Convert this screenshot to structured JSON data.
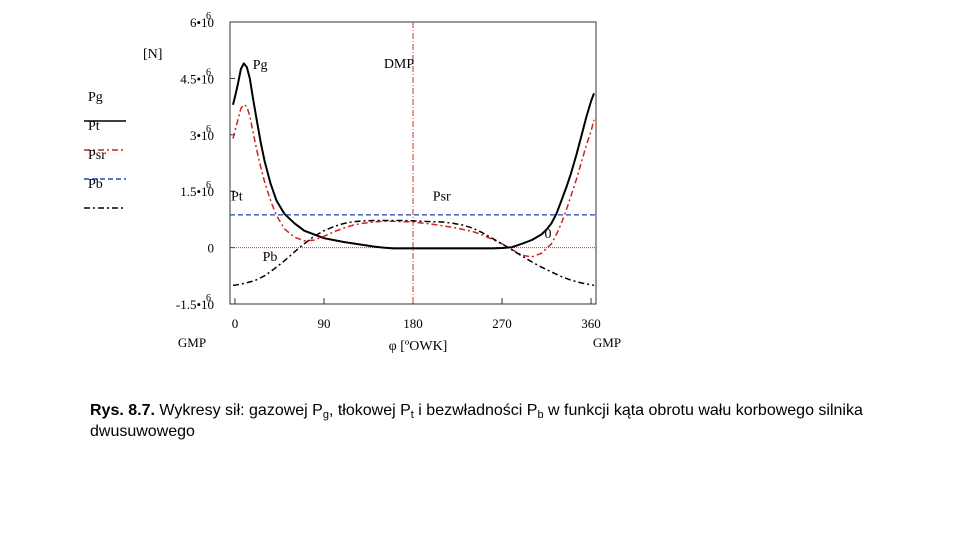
{
  "chart_data": {
    "type": "line",
    "ylabel": "[N]",
    "xlabel": "φ [ºOWK]",
    "xlim": [
      -5,
      365
    ],
    "ylim": [
      -1500000,
      6000000
    ],
    "x_ticks": [
      0,
      90,
      180,
      270,
      360
    ],
    "x_tick_labels": [
      "0",
      "90",
      "180",
      "270",
      "360"
    ],
    "y_tick_labels": [
      {
        "v": 6000000,
        "m": "6•10",
        "e": "6"
      },
      {
        "v": 4500000,
        "m": "4.5•10",
        "e": "6"
      },
      {
        "v": 3000000,
        "m": "3•10",
        "e": "6"
      },
      {
        "v": 1500000,
        "m": "1.5•10",
        "e": "6"
      },
      {
        "v": 0,
        "m": "0",
        "e": ""
      },
      {
        "v": -1500000,
        "m": "-1.5•10",
        "e": "6"
      }
    ],
    "x_end_labels": {
      "left": "GMP",
      "right": "GMP"
    },
    "vline": {
      "x": 180,
      "label": "DMP",
      "color": "#cc3333"
    },
    "hline_zero_color": "#cc3333",
    "legend": [
      {
        "name": "Pg",
        "color": "#000000",
        "dash": "solid"
      },
      {
        "name": "Pt",
        "color": "#cc2222",
        "dash": "dashdot"
      },
      {
        "name": "Psr",
        "color": "#2244bb",
        "dash": "dash"
      },
      {
        "name": "Pb",
        "color": "#000000",
        "dash": "dashdot"
      }
    ],
    "series": [
      {
        "name": "Pg",
        "color": "#000000",
        "dash": "solid",
        "width": 2,
        "x": [
          -2,
          0,
          3,
          6,
          9,
          12,
          15,
          18,
          22,
          26,
          30,
          36,
          42,
          50,
          60,
          70,
          80,
          90,
          100,
          110,
          120,
          130,
          140,
          150,
          160,
          180,
          200,
          220,
          240,
          260,
          270,
          280,
          290,
          300,
          310,
          315,
          320,
          325,
          330,
          335,
          340,
          345,
          350,
          355,
          360,
          363
        ],
        "y": [
          3800000,
          4000000,
          4350000,
          4750000,
          4900000,
          4800000,
          4500000,
          4000000,
          3400000,
          2800000,
          2300000,
          1700000,
          1250000,
          900000,
          650000,
          450000,
          350000,
          250000,
          200000,
          150000,
          110000,
          70000,
          30000,
          0,
          -20000,
          -20000,
          -20000,
          -20000,
          -20000,
          -20000,
          -10000,
          10000,
          100000,
          200000,
          350000,
          480000,
          650000,
          900000,
          1250000,
          1600000,
          2000000,
          2450000,
          2950000,
          3450000,
          3900000,
          4100000
        ]
      },
      {
        "name": "Pt",
        "color": "#cc2222",
        "dash": "dashdot",
        "width": 1.5,
        "x": [
          -2,
          0,
          3,
          6,
          9,
          12,
          15,
          18,
          22,
          26,
          30,
          36,
          42,
          50,
          60,
          70,
          80,
          90,
          100,
          110,
          120,
          130,
          140,
          150,
          160,
          180,
          200,
          220,
          240,
          250,
          260,
          270,
          280,
          290,
          300,
          310,
          320,
          325,
          330,
          335,
          340,
          345,
          350,
          355,
          360,
          363
        ],
        "y": [
          2900000,
          3100000,
          3400000,
          3700000,
          3800000,
          3750000,
          3500000,
          3100000,
          2600000,
          2150000,
          1750000,
          1250000,
          850000,
          500000,
          280000,
          180000,
          200000,
          300000,
          420000,
          520000,
          600000,
          650000,
          680000,
          700000,
          700000,
          680000,
          620000,
          540000,
          430000,
          340000,
          220000,
          100000,
          -50000,
          -200000,
          -250000,
          -150000,
          100000,
          350000,
          650000,
          1000000,
          1400000,
          1800000,
          2250000,
          2700000,
          3100000,
          3400000
        ]
      },
      {
        "name": "Pb",
        "color": "#000000",
        "dash": "dashdot",
        "width": 1.5,
        "x": [
          -2,
          0,
          10,
          20,
          30,
          40,
          50,
          60,
          70,
          80,
          90,
          100,
          110,
          120,
          130,
          140,
          150,
          160,
          170,
          180,
          190,
          200,
          210,
          220,
          230,
          240,
          250,
          260,
          270,
          280,
          290,
          300,
          310,
          320,
          330,
          340,
          350,
          360,
          363
        ],
        "y": [
          -1000000,
          -1000000,
          -950000,
          -880000,
          -750000,
          -560000,
          -350000,
          -120000,
          100000,
          300000,
          450000,
          560000,
          640000,
          690000,
          710000,
          720000,
          720000,
          720000,
          720000,
          710000,
          700000,
          690000,
          680000,
          650000,
          600000,
          520000,
          400000,
          250000,
          100000,
          -60000,
          -220000,
          -380000,
          -520000,
          -650000,
          -770000,
          -870000,
          -940000,
          -990000,
          -1000000
        ]
      },
      {
        "name": "Psr",
        "color": "#2244bb",
        "dash": "dash",
        "width": 1.2,
        "x": [
          -5,
          365
        ],
        "y": [
          870000,
          870000
        ]
      }
    ],
    "annotations": [
      {
        "text": "Pg",
        "x": 18,
        "y": 4750000
      },
      {
        "text": "Pt",
        "x": -4,
        "y": 1250000
      },
      {
        "text": "Psr",
        "x": 200,
        "y": 1250000
      },
      {
        "text": "Pb",
        "x": 28,
        "y": -350000
      },
      {
        "text": "0",
        "x": 313,
        "y": 250000
      }
    ]
  },
  "caption": {
    "lead": "Rys. 8.7.",
    "t1": " Wykresy sił: gazowej P",
    "s1": "g",
    "t2": ", tłokowej P",
    "s2": "t",
    "t3": " i bezwładności P",
    "s3": "b",
    "t4": "  w funkcji kąta obrotu wału korbowego silnika dwusuwowego"
  }
}
